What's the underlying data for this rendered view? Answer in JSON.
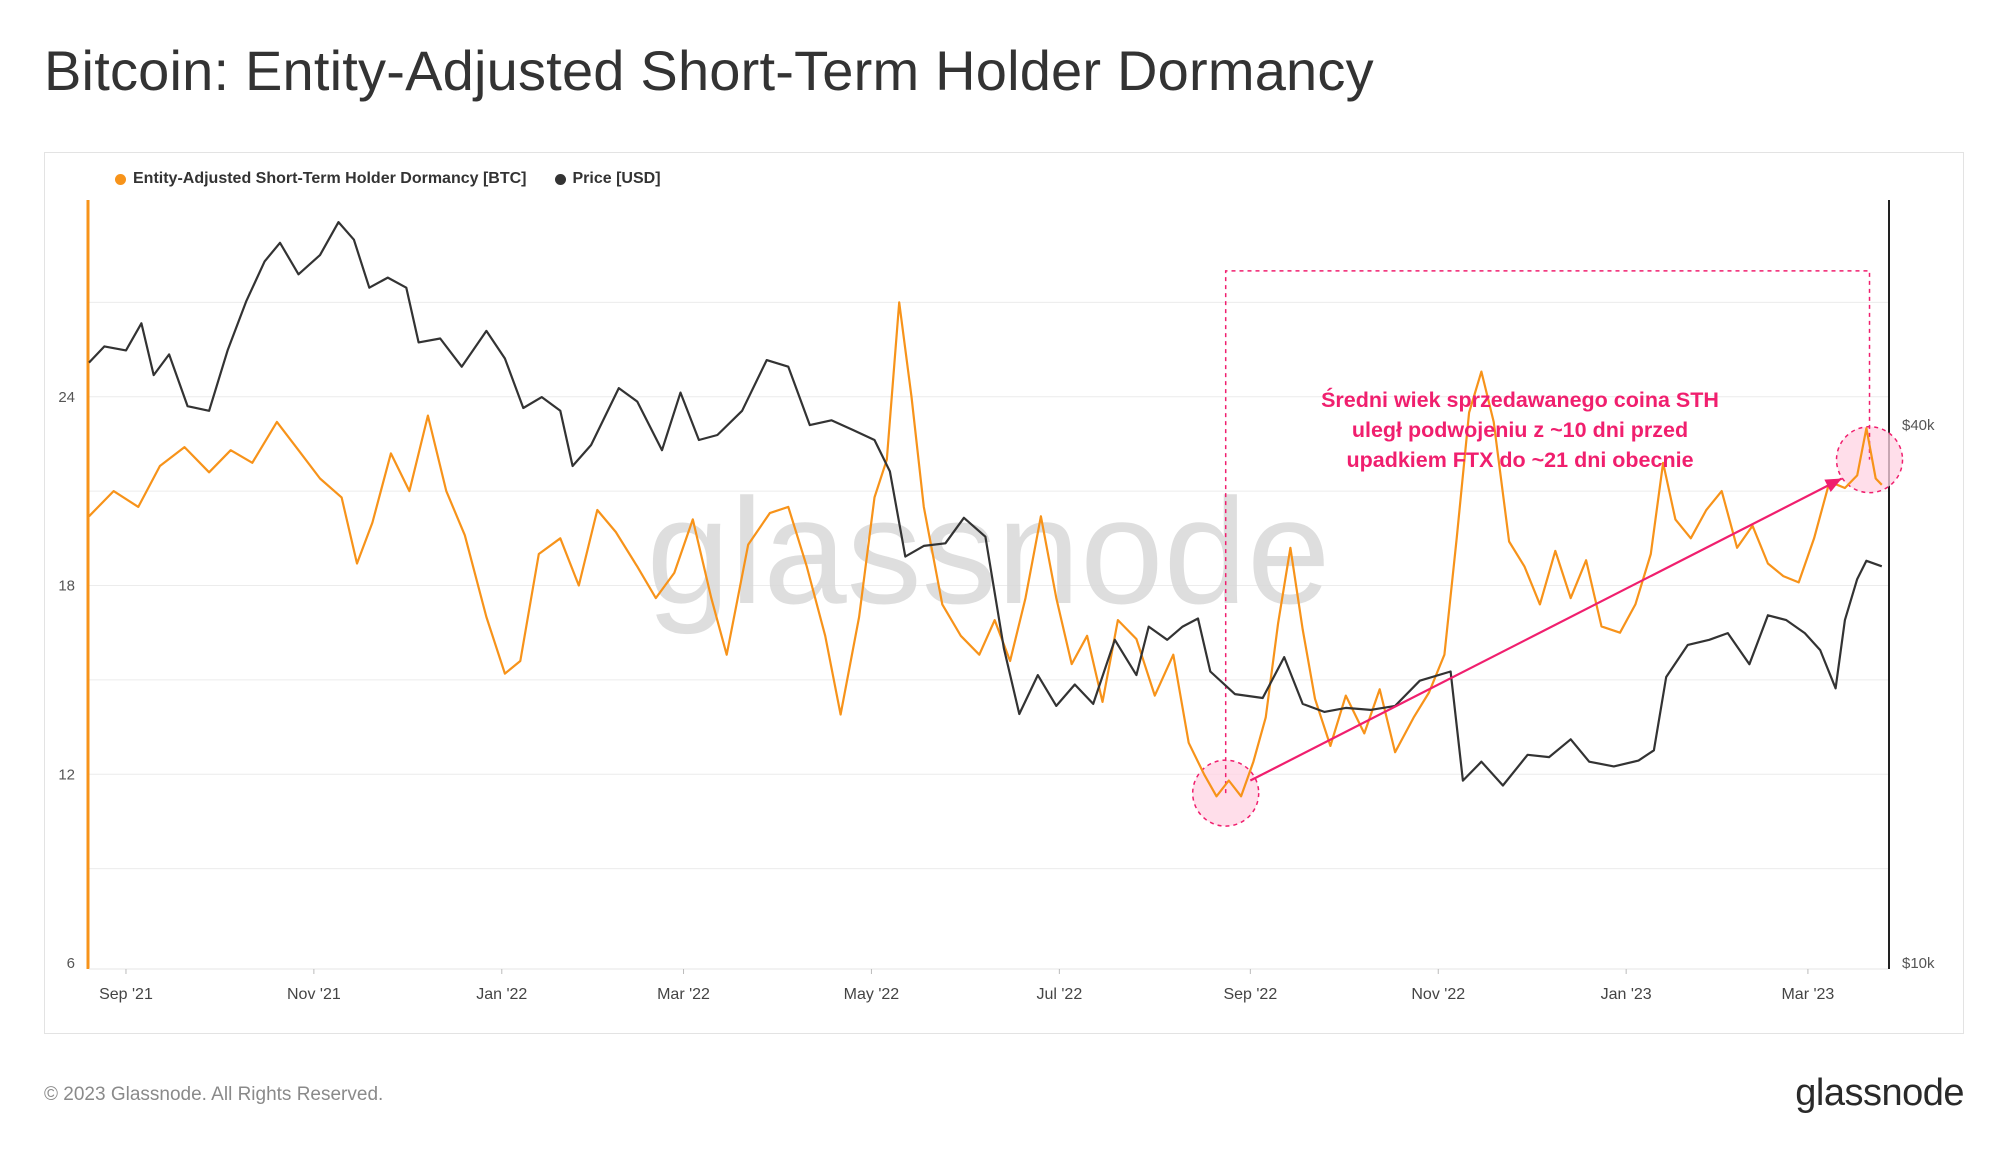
{
  "page_title": "Bitcoin: Entity-Adjusted Short-Term Holder Dormancy",
  "footer": {
    "copyright": "© 2023 Glassnode. All Rights Reserved.",
    "brand": "glassnode"
  },
  "watermark": "glassnode",
  "colors": {
    "dormancy": "#f7931a",
    "price": "#333333",
    "annotation": "#f01f6e",
    "highlight_fill": "#ffd3e3",
    "grid": "#ececec"
  },
  "annotation_text": "Średni wiek sprzedawanego coina STH\nuległ podwojeniu z ~10 dni przed\nupadkiem FTX do ~21 dni obecnie",
  "chart_data": {
    "type": "line",
    "legend": [
      {
        "label": "Entity-Adjusted Short-Term Holder Dormancy [BTC]",
        "color": "#f7931a"
      },
      {
        "label": "Price [USD]",
        "color": "#333333"
      }
    ],
    "legend_position": "top-left",
    "grid": true,
    "x_range": [
      "2021-08-20",
      "2023-03-27"
    ],
    "x_ticks": [
      {
        "date": "2021-09-01",
        "label": "Sep '21"
      },
      {
        "date": "2021-11-01",
        "label": "Nov '21"
      },
      {
        "date": "2022-01-01",
        "label": "Jan '22"
      },
      {
        "date": "2022-03-01",
        "label": "Mar '22"
      },
      {
        "date": "2022-05-01",
        "label": "May '22"
      },
      {
        "date": "2022-07-01",
        "label": "Jul '22"
      },
      {
        "date": "2022-09-01",
        "label": "Sep '22"
      },
      {
        "date": "2022-11-01",
        "label": "Nov '22"
      },
      {
        "date": "2023-01-01",
        "label": "Jan '23"
      },
      {
        "date": "2023-03-01",
        "label": "Mar '23"
      }
    ],
    "y_left": {
      "min": 6,
      "max": 30,
      "ticks": [
        6,
        12,
        18,
        24
      ],
      "tick_labels": [
        "6",
        "12",
        "18",
        "24"
      ]
    },
    "y_right": {
      "scale": "log",
      "min": 10000,
      "max": 70000,
      "ticks": [
        10000,
        40000
      ],
      "tick_labels": [
        "$10k",
        "$40k"
      ]
    },
    "series": [
      {
        "name": "Entity-Adjusted Short-Term Holder Dormancy [BTC]",
        "axis": "left",
        "points": [
          [
            "2021-08-20",
            20.2
          ],
          [
            "2021-08-28",
            21.0
          ],
          [
            "2021-09-05",
            20.5
          ],
          [
            "2021-09-12",
            21.8
          ],
          [
            "2021-09-20",
            22.4
          ],
          [
            "2021-09-28",
            21.6
          ],
          [
            "2021-10-05",
            22.3
          ],
          [
            "2021-10-12",
            21.9
          ],
          [
            "2021-10-20",
            23.2
          ],
          [
            "2021-10-27",
            22.3
          ],
          [
            "2021-11-03",
            21.4
          ],
          [
            "2021-11-10",
            20.8
          ],
          [
            "2021-11-15",
            18.7
          ],
          [
            "2021-11-20",
            20.0
          ],
          [
            "2021-11-26",
            22.2
          ],
          [
            "2021-12-02",
            21.0
          ],
          [
            "2021-12-08",
            23.4
          ],
          [
            "2021-12-14",
            21.0
          ],
          [
            "2021-12-20",
            19.6
          ],
          [
            "2021-12-27",
            17.0
          ],
          [
            "2022-01-02",
            15.2
          ],
          [
            "2022-01-07",
            15.6
          ],
          [
            "2022-01-13",
            19.0
          ],
          [
            "2022-01-20",
            19.5
          ],
          [
            "2022-01-26",
            18.0
          ],
          [
            "2022-02-01",
            20.4
          ],
          [
            "2022-02-07",
            19.7
          ],
          [
            "2022-02-14",
            18.6
          ],
          [
            "2022-02-20",
            17.6
          ],
          [
            "2022-02-26",
            18.4
          ],
          [
            "2022-03-04",
            20.1
          ],
          [
            "2022-03-10",
            17.6
          ],
          [
            "2022-03-15",
            15.8
          ],
          [
            "2022-03-22",
            19.3
          ],
          [
            "2022-03-29",
            20.3
          ],
          [
            "2022-04-04",
            20.5
          ],
          [
            "2022-04-10",
            18.6
          ],
          [
            "2022-04-16",
            16.4
          ],
          [
            "2022-04-21",
            13.9
          ],
          [
            "2022-04-27",
            17.0
          ],
          [
            "2022-05-02",
            20.8
          ],
          [
            "2022-05-06",
            22.0
          ],
          [
            "2022-05-10",
            27.0
          ],
          [
            "2022-05-14",
            24.0
          ],
          [
            "2022-05-18",
            20.5
          ],
          [
            "2022-05-24",
            17.4
          ],
          [
            "2022-05-30",
            16.4
          ],
          [
            "2022-06-05",
            15.8
          ],
          [
            "2022-06-10",
            16.9
          ],
          [
            "2022-06-15",
            15.6
          ],
          [
            "2022-06-20",
            17.6
          ],
          [
            "2022-06-25",
            20.2
          ],
          [
            "2022-06-30",
            17.6
          ],
          [
            "2022-07-05",
            15.5
          ],
          [
            "2022-07-10",
            16.4
          ],
          [
            "2022-07-15",
            14.3
          ],
          [
            "2022-07-20",
            16.9
          ],
          [
            "2022-07-26",
            16.3
          ],
          [
            "2022-08-01",
            14.5
          ],
          [
            "2022-08-07",
            15.8
          ],
          [
            "2022-08-12",
            13.0
          ],
          [
            "2022-08-17",
            12.0
          ],
          [
            "2022-08-21",
            11.3
          ],
          [
            "2022-08-25",
            11.8
          ],
          [
            "2022-08-29",
            11.3
          ],
          [
            "2022-09-02",
            12.4
          ],
          [
            "2022-09-06",
            13.8
          ],
          [
            "2022-09-10",
            16.8
          ],
          [
            "2022-09-14",
            19.2
          ],
          [
            "2022-09-18",
            16.6
          ],
          [
            "2022-09-22",
            14.4
          ],
          [
            "2022-09-27",
            12.9
          ],
          [
            "2022-10-02",
            14.5
          ],
          [
            "2022-10-08",
            13.3
          ],
          [
            "2022-10-13",
            14.7
          ],
          [
            "2022-10-18",
            12.7
          ],
          [
            "2022-10-24",
            13.8
          ],
          [
            "2022-10-29",
            14.6
          ],
          [
            "2022-11-03",
            15.8
          ],
          [
            "2022-11-07",
            19.5
          ],
          [
            "2022-11-11",
            23.5
          ],
          [
            "2022-11-15",
            24.8
          ],
          [
            "2022-11-19",
            23.2
          ],
          [
            "2022-11-24",
            19.4
          ],
          [
            "2022-11-29",
            18.6
          ],
          [
            "2022-12-04",
            17.4
          ],
          [
            "2022-12-09",
            19.1
          ],
          [
            "2022-12-14",
            17.6
          ],
          [
            "2022-12-19",
            18.8
          ],
          [
            "2022-12-24",
            16.7
          ],
          [
            "2022-12-30",
            16.5
          ],
          [
            "2023-01-04",
            17.4
          ],
          [
            "2023-01-09",
            19.0
          ],
          [
            "2023-01-13",
            21.9
          ],
          [
            "2023-01-17",
            20.1
          ],
          [
            "2023-01-22",
            19.5
          ],
          [
            "2023-01-27",
            20.4
          ],
          [
            "2023-02-01",
            21.0
          ],
          [
            "2023-02-06",
            19.2
          ],
          [
            "2023-02-11",
            19.9
          ],
          [
            "2023-02-16",
            18.7
          ],
          [
            "2023-02-21",
            18.3
          ],
          [
            "2023-02-26",
            18.1
          ],
          [
            "2023-03-03",
            19.5
          ],
          [
            "2023-03-08",
            21.3
          ],
          [
            "2023-03-13",
            21.1
          ],
          [
            "2023-03-17",
            21.5
          ],
          [
            "2023-03-20",
            23.0
          ],
          [
            "2023-03-23",
            21.4
          ],
          [
            "2023-03-25",
            21.2
          ]
        ]
      },
      {
        "name": "Price [USD]",
        "axis": "right",
        "points": [
          [
            "2021-08-20",
            47000
          ],
          [
            "2021-08-25",
            49000
          ],
          [
            "2021-09-01",
            48500
          ],
          [
            "2021-09-06",
            52000
          ],
          [
            "2021-09-10",
            45500
          ],
          [
            "2021-09-15",
            48000
          ],
          [
            "2021-09-21",
            42000
          ],
          [
            "2021-09-28",
            41500
          ],
          [
            "2021-10-04",
            48500
          ],
          [
            "2021-10-10",
            55000
          ],
          [
            "2021-10-16",
            61000
          ],
          [
            "2021-10-21",
            64000
          ],
          [
            "2021-10-27",
            59000
          ],
          [
            "2021-11-03",
            62000
          ],
          [
            "2021-11-09",
            67500
          ],
          [
            "2021-11-14",
            64500
          ],
          [
            "2021-11-19",
            57000
          ],
          [
            "2021-11-25",
            58500
          ],
          [
            "2021-12-01",
            57000
          ],
          [
            "2021-12-05",
            49500
          ],
          [
            "2021-12-12",
            50000
          ],
          [
            "2021-12-19",
            46500
          ],
          [
            "2021-12-27",
            51000
          ],
          [
            "2022-01-02",
            47500
          ],
          [
            "2022-01-08",
            41800
          ],
          [
            "2022-01-14",
            43000
          ],
          [
            "2022-01-20",
            41500
          ],
          [
            "2022-01-24",
            36000
          ],
          [
            "2022-01-30",
            38000
          ],
          [
            "2022-02-08",
            44000
          ],
          [
            "2022-02-14",
            42500
          ],
          [
            "2022-02-22",
            37500
          ],
          [
            "2022-02-28",
            43500
          ],
          [
            "2022-03-06",
            38500
          ],
          [
            "2022-03-12",
            39000
          ],
          [
            "2022-03-20",
            41500
          ],
          [
            "2022-03-28",
            47300
          ],
          [
            "2022-04-04",
            46500
          ],
          [
            "2022-04-11",
            40000
          ],
          [
            "2022-04-18",
            40500
          ],
          [
            "2022-04-25",
            39500
          ],
          [
            "2022-05-02",
            38500
          ],
          [
            "2022-05-07",
            35500
          ],
          [
            "2022-05-12",
            28500
          ],
          [
            "2022-05-18",
            29300
          ],
          [
            "2022-05-25",
            29500
          ],
          [
            "2022-05-31",
            31500
          ],
          [
            "2022-06-07",
            30000
          ],
          [
            "2022-06-13",
            22500
          ],
          [
            "2022-06-18",
            19000
          ],
          [
            "2022-06-24",
            21000
          ],
          [
            "2022-06-30",
            19400
          ],
          [
            "2022-07-06",
            20500
          ],
          [
            "2022-07-12",
            19500
          ],
          [
            "2022-07-19",
            23000
          ],
          [
            "2022-07-26",
            21000
          ],
          [
            "2022-07-30",
            23800
          ],
          [
            "2022-08-05",
            23000
          ],
          [
            "2022-08-10",
            23800
          ],
          [
            "2022-08-15",
            24300
          ],
          [
            "2022-08-19",
            21200
          ],
          [
            "2022-08-27",
            20000
          ],
          [
            "2022-09-05",
            19800
          ],
          [
            "2022-09-12",
            22000
          ],
          [
            "2022-09-18",
            19500
          ],
          [
            "2022-09-25",
            19100
          ],
          [
            "2022-10-02",
            19300
          ],
          [
            "2022-10-10",
            19200
          ],
          [
            "2022-10-18",
            19400
          ],
          [
            "2022-10-26",
            20700
          ],
          [
            "2022-11-05",
            21200
          ],
          [
            "2022-11-09",
            16000
          ],
          [
            "2022-11-15",
            16800
          ],
          [
            "2022-11-22",
            15800
          ],
          [
            "2022-11-30",
            17100
          ],
          [
            "2022-12-07",
            17000
          ],
          [
            "2022-12-14",
            17800
          ],
          [
            "2022-12-20",
            16800
          ],
          [
            "2022-12-28",
            16600
          ],
          [
            "2023-01-05",
            16850
          ],
          [
            "2023-01-10",
            17300
          ],
          [
            "2023-01-14",
            20900
          ],
          [
            "2023-01-21",
            22700
          ],
          [
            "2023-01-28",
            23000
          ],
          [
            "2023-02-03",
            23400
          ],
          [
            "2023-02-10",
            21600
          ],
          [
            "2023-02-16",
            24500
          ],
          [
            "2023-02-22",
            24200
          ],
          [
            "2023-02-28",
            23400
          ],
          [
            "2023-03-05",
            22400
          ],
          [
            "2023-03-10",
            20300
          ],
          [
            "2023-03-13",
            24200
          ],
          [
            "2023-03-17",
            26900
          ],
          [
            "2023-03-20",
            28200
          ],
          [
            "2023-03-25",
            27800
          ]
        ]
      }
    ],
    "annotations": [
      {
        "type": "circle",
        "series": "Entity-Adjusted Short-Term Holder Dormancy [BTC]",
        "date": "2022-08-24",
        "value": 11.4
      },
      {
        "type": "circle",
        "series": "Entity-Adjusted Short-Term Holder Dormancy [BTC]",
        "date": "2023-03-21",
        "value": 22.0
      },
      {
        "type": "arrow",
        "from": {
          "date": "2022-09-01",
          "value": 11.8
        },
        "to": {
          "date": "2023-03-12",
          "value": 21.4
        }
      },
      {
        "type": "dashed-bracket",
        "from_date": "2022-08-24",
        "to_date": "2023-03-21",
        "top_value": 28.0
      }
    ]
  }
}
